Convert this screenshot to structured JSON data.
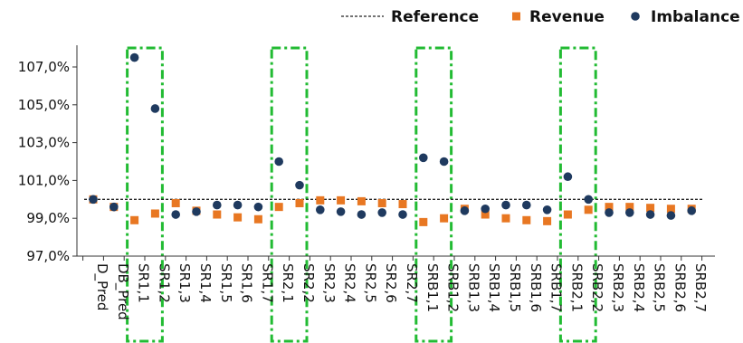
{
  "chart_data": {
    "type": "scatter",
    "categories": [
      "D_Pred",
      "DB_Pred",
      "SR1,1",
      "SR1,2",
      "SR1,3",
      "SR1,4",
      "SR1,5",
      "SR1,6",
      "SR1,7",
      "SR2,1",
      "SR2,2",
      "SR2,3",
      "SR2,4",
      "SR2,5",
      "SR2,6",
      "SR2,7",
      "SRB1,1",
      "SRB1,2",
      "SRB1,3",
      "SRB1,4",
      "SRB1,5",
      "SRB1,6",
      "SRB1,7",
      "SRB2,1",
      "SRB2,2",
      "SRB2,3",
      "SRB2,4",
      "SRB2,5",
      "SRB2,6",
      "SRB2,7"
    ],
    "series": [
      {
        "name": "Revenue",
        "color": "#e87722",
        "marker": "square",
        "values": [
          100.0,
          99.6,
          98.9,
          99.25,
          99.8,
          99.4,
          99.2,
          99.05,
          98.95,
          99.6,
          99.8,
          99.95,
          99.95,
          99.9,
          99.8,
          99.75,
          98.8,
          99.0,
          99.5,
          99.2,
          99.0,
          98.9,
          98.85,
          99.2,
          99.45,
          99.6,
          99.6,
          99.55,
          99.5,
          99.5
        ]
      },
      {
        "name": "Imbalance",
        "color": "#1f3a5f",
        "marker": "circle",
        "values": [
          100.0,
          99.6,
          107.5,
          104.8,
          99.2,
          99.35,
          99.7,
          99.7,
          99.6,
          102.0,
          100.75,
          99.45,
          99.35,
          99.2,
          99.3,
          99.2,
          102.2,
          102.0,
          99.4,
          99.5,
          99.7,
          99.7,
          99.45,
          101.2,
          100.0,
          99.3,
          99.3,
          99.2,
          99.15,
          99.4
        ]
      }
    ],
    "reference": {
      "name": "Reference",
      "value": 100.0,
      "style": "dotted"
    },
    "y_ticks": [
      "97,0%",
      "99,0%",
      "101,0%",
      "103,0%",
      "105,0%",
      "107,0%"
    ],
    "y_tick_values": [
      97,
      99,
      101,
      103,
      105,
      107
    ],
    "ylim": [
      97,
      108
    ],
    "highlight_groups": [
      [
        "SR1,1",
        "SR1,2"
      ],
      [
        "SR2,1",
        "SR2,2"
      ],
      [
        "SRB1,1",
        "SRB1,2"
      ],
      [
        "SRB2,1",
        "SRB2,2"
      ]
    ],
    "highlight_color": "#22bb33",
    "legend_position": "top-right",
    "grid": false
  }
}
